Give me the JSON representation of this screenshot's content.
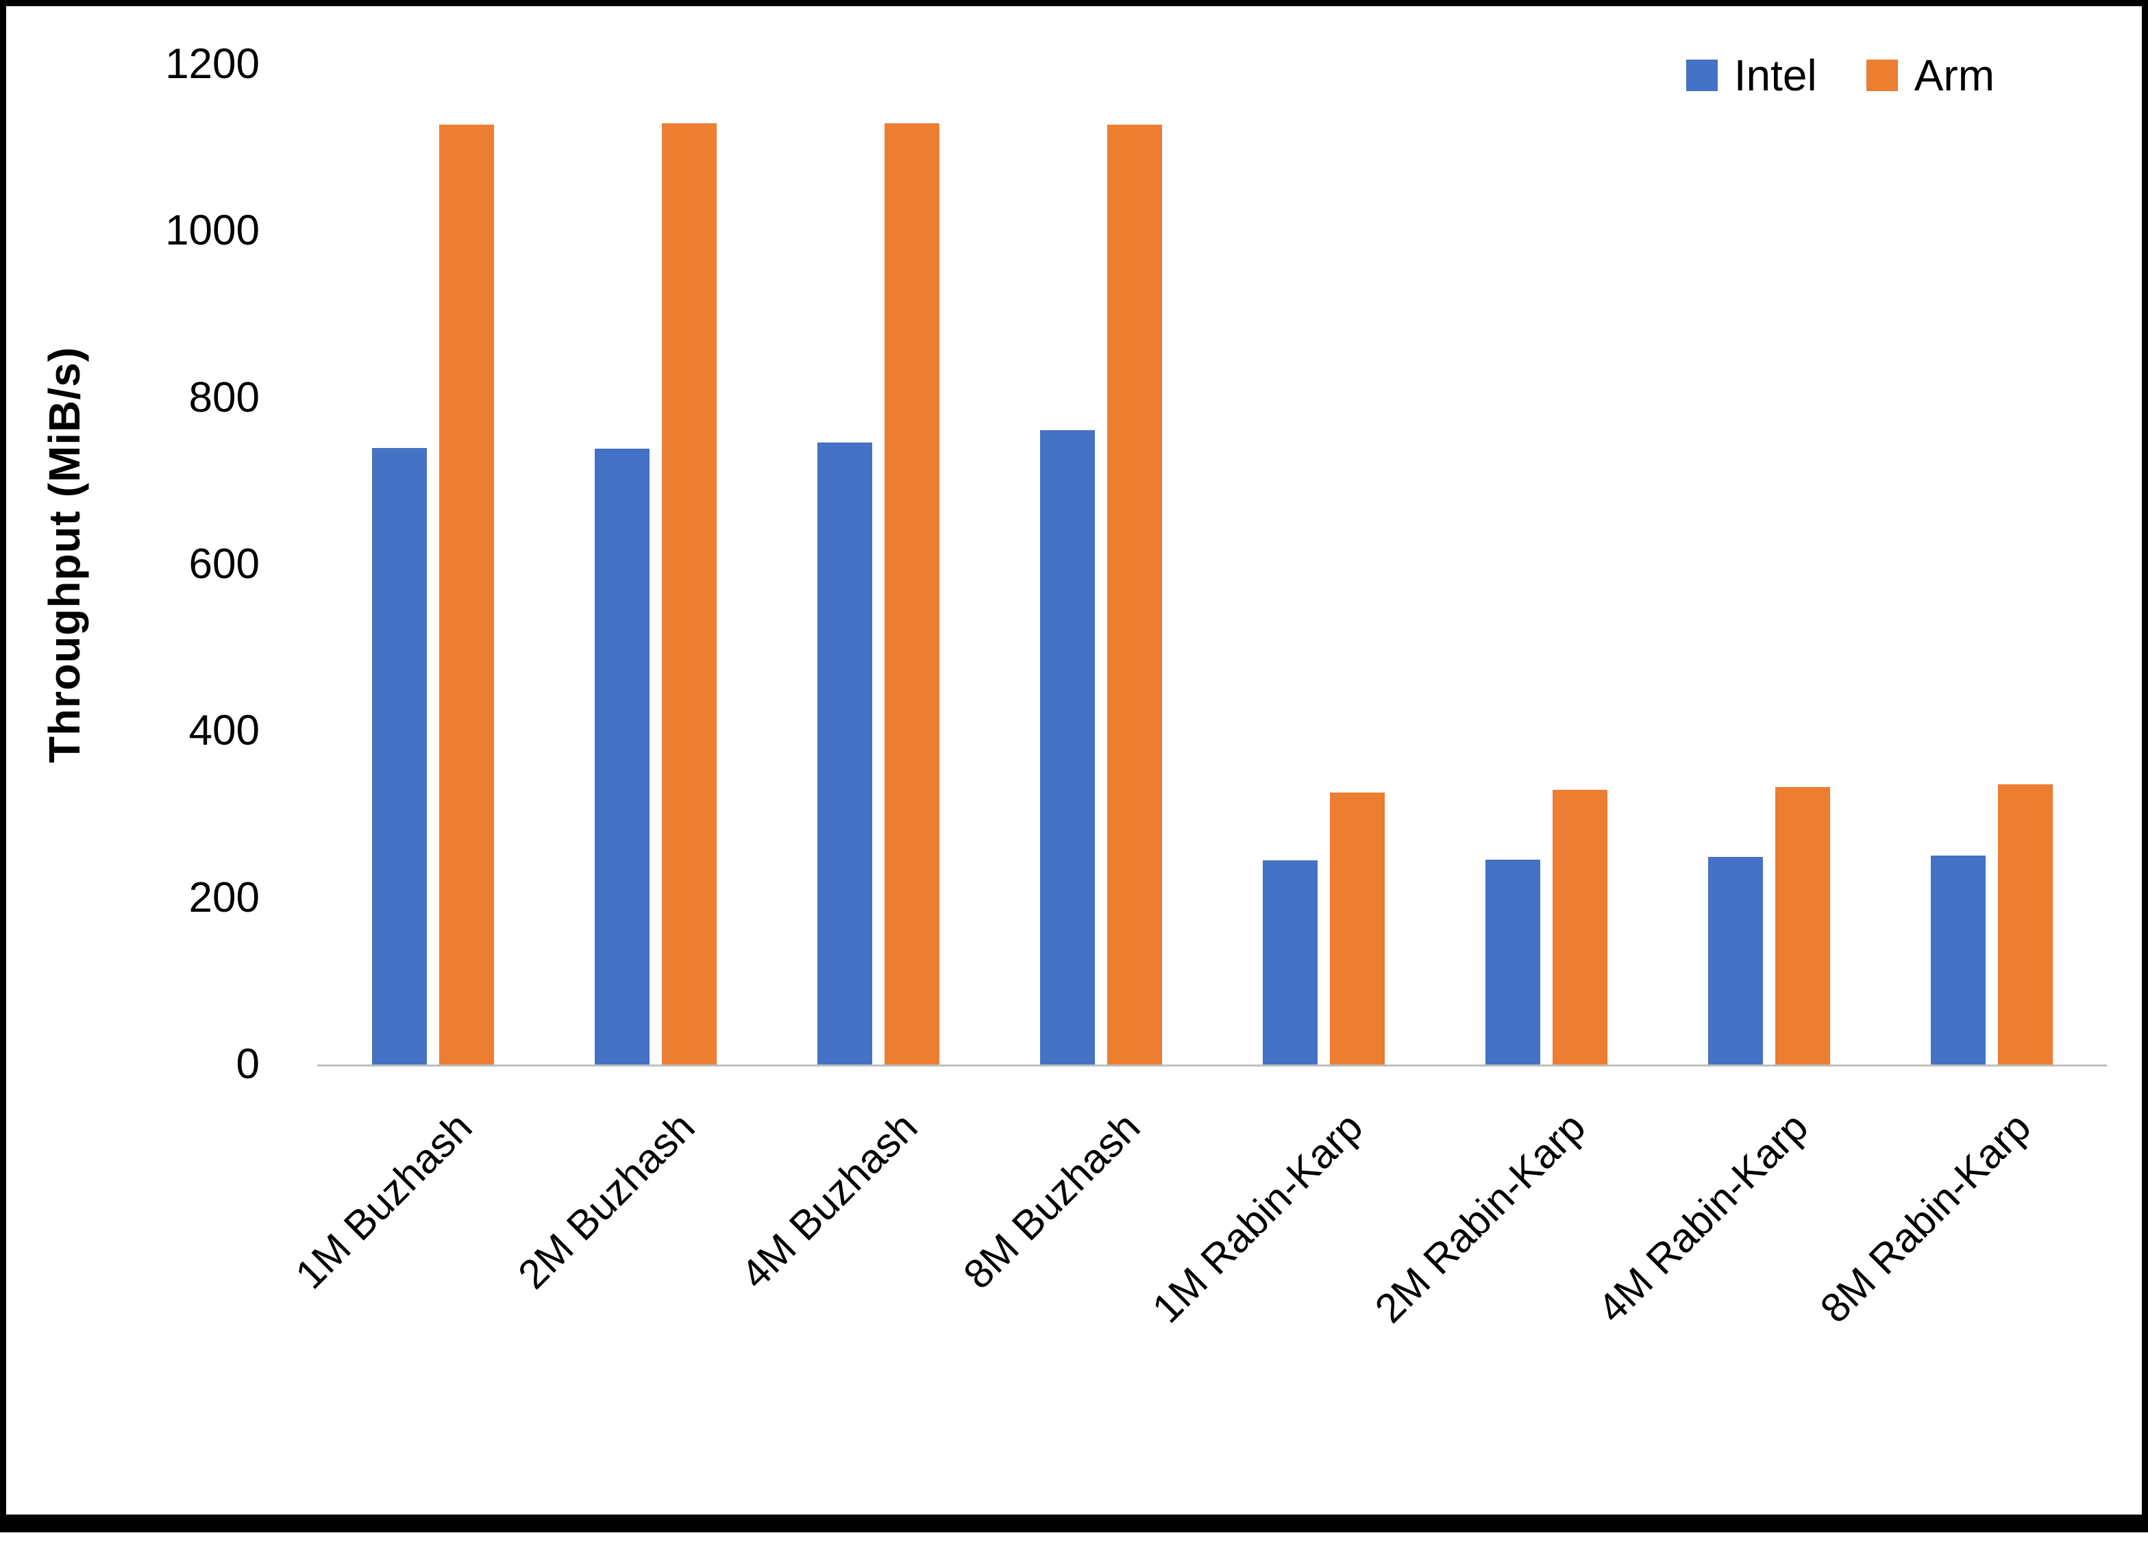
{
  "figure": {
    "background_color": "#ffffff",
    "border_color": "#000000",
    "axis_line_color": "#BFBFBF"
  },
  "chart_data": {
    "type": "bar",
    "title": "",
    "xlabel": "",
    "ylabel": "Throughput (MiB/s)",
    "categories": [
      "1M Buzhash",
      "2M Buzhash",
      "4M Buzhash",
      "8M Buzhash",
      "1M Rabin-Karp",
      "2M Rabin-Karp",
      "4M Rabin-Karp",
      "8M Rabin-Karp"
    ],
    "series": [
      {
        "name": "Intel",
        "color": "#4472C4",
        "values": [
          740,
          739,
          746,
          761,
          245,
          246,
          249,
          251
        ]
      },
      {
        "name": "Arm",
        "color": "#ED7D31",
        "values": [
          1128,
          1129,
          1129,
          1128,
          326,
          330,
          333,
          336
        ]
      }
    ],
    "ylim": [
      0,
      1200
    ],
    "yticks": [
      0,
      200,
      400,
      600,
      800,
      1000,
      1200
    ],
    "grid": false,
    "legend_labels": [
      "Intel",
      "Arm"
    ],
    "legend_position": "top-right"
  }
}
